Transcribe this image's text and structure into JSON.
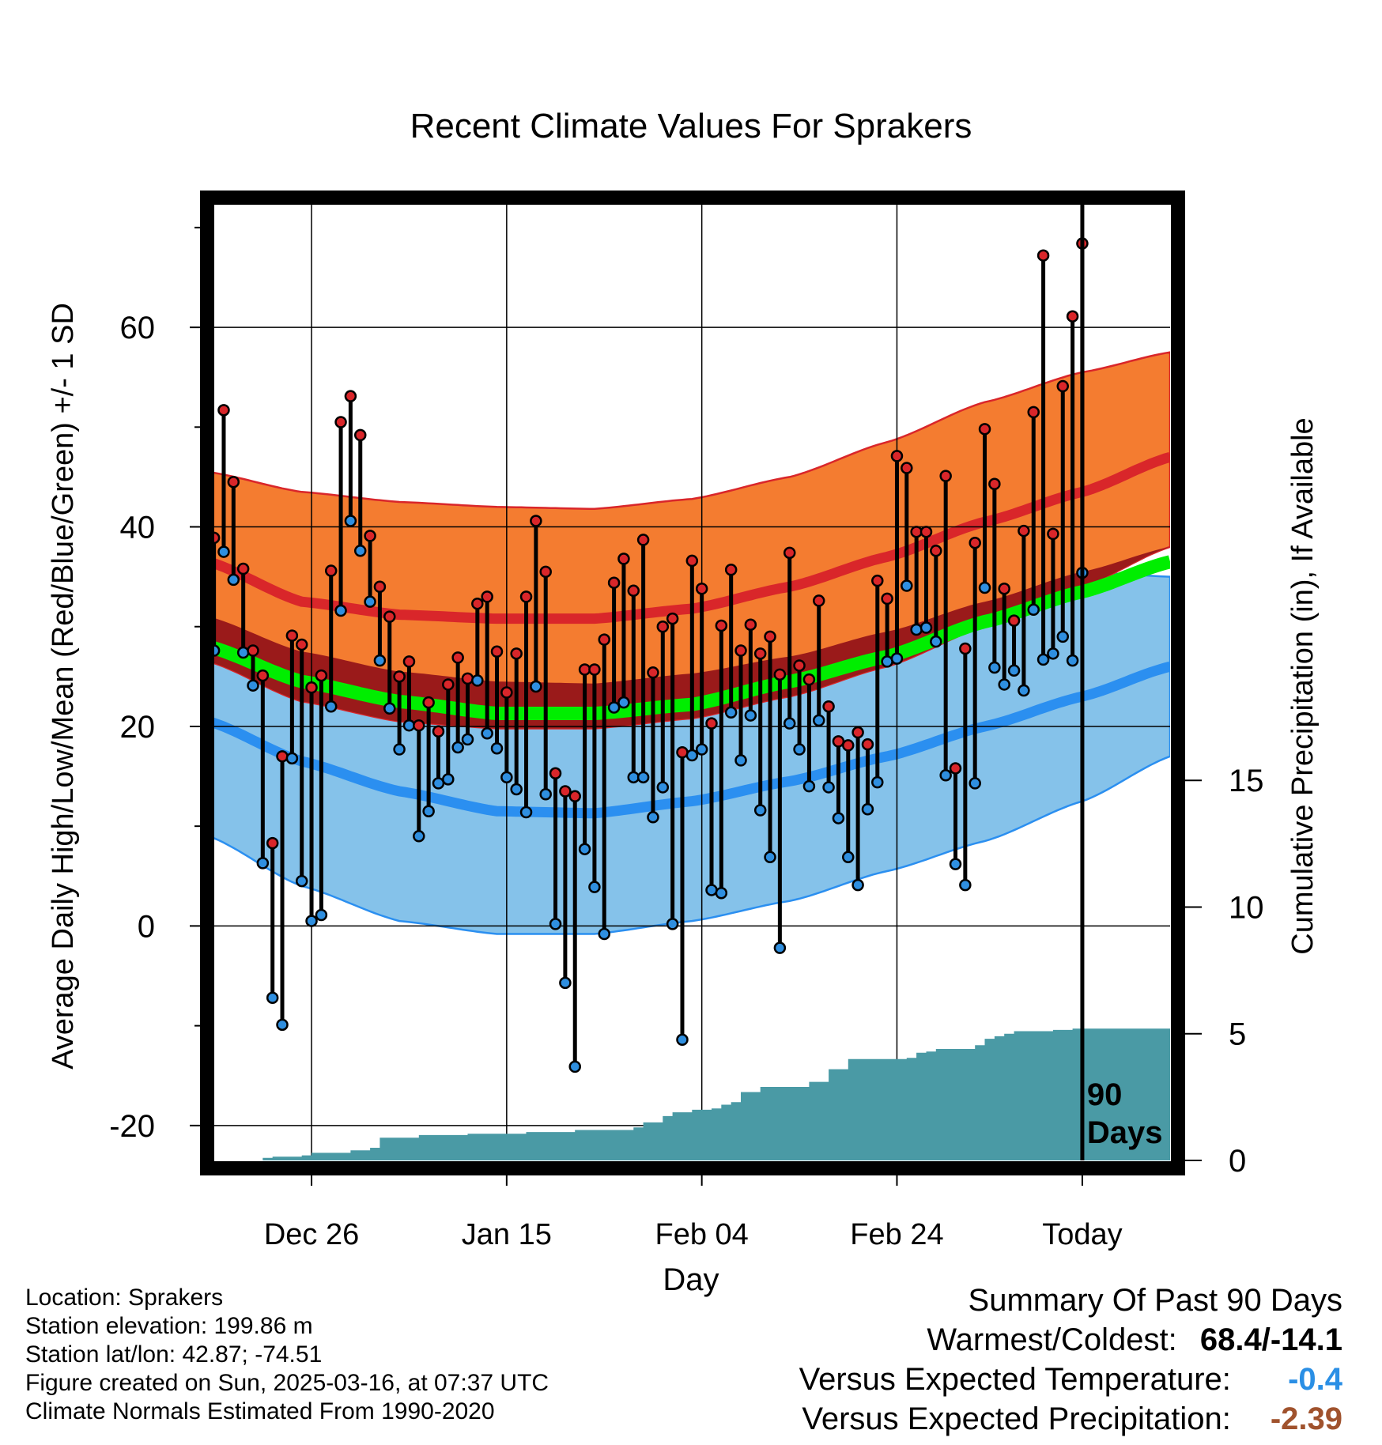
{
  "chart_data": {
    "type": "line",
    "title": "Recent Climate Values For Sprakers",
    "xlabel": "Day",
    "ylabel": "Average Daily High/Low/Mean (Red/Blue/Green) +/- 1 SD",
    "y2label": "Cumulative Precipitation (in), If Available",
    "ylim": [
      -23.5,
      73
    ],
    "y2lim": [
      0,
      38
    ],
    "xlim": [
      -89.7,
      9
    ],
    "x_unit": "days relative to today",
    "x_ticks": [
      {
        "x": -79,
        "label": "Dec 26"
      },
      {
        "x": -59,
        "label": "Jan 15"
      },
      {
        "x": -39,
        "label": "Feb 04"
      },
      {
        "x": -19,
        "label": "Feb 24"
      },
      {
        "x": 0,
        "label": "Today"
      }
    ],
    "y_ticks": [
      -20,
      0,
      20,
      40,
      60
    ],
    "y_minor_ticks": [
      -10,
      10,
      30,
      50,
      70
    ],
    "y2_ticks": [
      0,
      5,
      10,
      15
    ],
    "today_marker": {
      "x": 0,
      "label_line1": "90",
      "label_line2": "Days"
    },
    "grid": true,
    "normals": {
      "x": [
        -89.5,
        -80,
        -70,
        -60,
        -50,
        -40,
        -30,
        -20,
        -10,
        0,
        9
      ],
      "high_mean": [
        36.5,
        32.5,
        31.2,
        30.8,
        30.8,
        31.8,
        34.0,
        37.0,
        40.5,
        43.5,
        47.0
      ],
      "high_upper": [
        45.5,
        43.5,
        42.5,
        42.0,
        41.8,
        42.8,
        45.0,
        48.5,
        52.5,
        55.5,
        57.5
      ],
      "high_lower": [
        26.5,
        22.5,
        20.5,
        19.8,
        19.8,
        20.8,
        23.0,
        26.0,
        30.0,
        34.0,
        38.0
      ],
      "low_mean": [
        20.5,
        16.5,
        13.5,
        11.5,
        11.3,
        12.5,
        14.5,
        17.0,
        20.0,
        23.0,
        26.0
      ],
      "low_upper": [
        31.0,
        27.5,
        25.5,
        24.5,
        24.3,
        25.3,
        27.0,
        29.5,
        32.5,
        35.5,
        35.0
      ],
      "low_lower": [
        9.0,
        4.0,
        0.5,
        -0.8,
        -0.8,
        0.5,
        2.5,
        5.5,
        8.5,
        12.5,
        17.0
      ],
      "mean": [
        28.0,
        24.5,
        22.5,
        21.3,
        21.3,
        22.2,
        24.5,
        27.0,
        30.5,
        33.5,
        36.5
      ]
    },
    "series": [
      {
        "name": "Daily High",
        "values": [
          38.9,
          51.7,
          44.5,
          35.8,
          27.6,
          25.1,
          8.3,
          17.0,
          29.1,
          28.2,
          23.9,
          25.1,
          35.6,
          50.5,
          53.1,
          49.2,
          39.1,
          34.0,
          31.0,
          25.0,
          26.5,
          20.1,
          22.4,
          19.5,
          24.2,
          26.9,
          24.8,
          32.3,
          33.0,
          27.5,
          23.4,
          27.3,
          33.0,
          40.6,
          35.5,
          15.3,
          13.5,
          13.0,
          25.7,
          25.7,
          28.7,
          34.4,
          36.8,
          33.6,
          38.7,
          25.4,
          30.0,
          30.8,
          17.4,
          36.6,
          33.8,
          20.3,
          30.1,
          35.7,
          27.6,
          30.2,
          27.3,
          29.0,
          25.2,
          37.4,
          26.1,
          24.7,
          32.6,
          22.0,
          18.5,
          18.1,
          19.4,
          18.2,
          34.6,
          32.8,
          47.1,
          45.9,
          39.5,
          39.5,
          37.6,
          45.1,
          15.8,
          27.8,
          38.4,
          49.8,
          44.3,
          33.8,
          30.6,
          39.6,
          51.5,
          67.2,
          39.3,
          54.1,
          61.1,
          68.4
        ]
      },
      {
        "name": "Daily Low",
        "values": [
          27.6,
          37.5,
          34.7,
          27.4,
          24.1,
          6.3,
          -7.2,
          -9.9,
          16.8,
          4.5,
          0.5,
          1.1,
          22.0,
          31.6,
          40.6,
          37.6,
          32.5,
          26.6,
          21.8,
          17.7,
          20.1,
          9.0,
          11.5,
          14.3,
          14.7,
          17.9,
          18.7,
          24.6,
          19.3,
          17.8,
          14.9,
          13.7,
          11.4,
          24.0,
          13.2,
          0.2,
          -5.7,
          -14.1,
          7.7,
          3.9,
          -0.8,
          21.9,
          22.4,
          14.9,
          14.9,
          10.9,
          13.9,
          0.2,
          -11.4,
          17.1,
          17.7,
          3.6,
          3.3,
          21.4,
          16.6,
          21.1,
          11.6,
          6.9,
          -2.2,
          20.3,
          17.7,
          14.0,
          20.6,
          13.9,
          10.8,
          6.9,
          4.1,
          11.7,
          14.4,
          26.5,
          26.8,
          34.1,
          29.7,
          29.9,
          28.5,
          15.1,
          6.2,
          4.1,
          14.3,
          33.9,
          25.9,
          24.2,
          25.6,
          23.6,
          31.7,
          26.7,
          27.3,
          29.0,
          26.6,
          35.4
        ]
      },
      {
        "name": "Cumulative Precipitation",
        "x": [
          -89.5,
          -84,
          -83,
          -80,
          -79,
          -75,
          -73,
          -72,
          -68,
          -63,
          -57,
          -52,
          -46,
          -45,
          -43,
          -42,
          -40,
          -38,
          -37,
          -36,
          -35,
          -33,
          -32,
          -31,
          -28,
          -27,
          -26,
          -24,
          -23,
          -19,
          -18,
          -17,
          -16,
          -15,
          -12,
          -11,
          -10,
          -9,
          -8,
          -7,
          -5,
          -4,
          -3,
          -1,
          0,
          9
        ],
        "values": [
          0,
          0.1,
          0.15,
          0.2,
          0.3,
          0.4,
          0.5,
          0.9,
          1.0,
          1.05,
          1.12,
          1.2,
          1.3,
          1.5,
          1.75,
          1.9,
          2.0,
          2.05,
          2.2,
          2.3,
          2.7,
          2.9,
          2.9,
          2.9,
          3.1,
          3.1,
          3.6,
          4.0,
          4.0,
          4.0,
          4.05,
          4.25,
          4.3,
          4.4,
          4.4,
          4.55,
          4.8,
          4.9,
          5.0,
          5.1,
          5.1,
          5.1,
          5.15,
          5.2,
          5.2,
          5.2
        ]
      }
    ]
  },
  "info": {
    "location": "Location: Sprakers",
    "elevation": "Station elevation: 199.86 m",
    "latlon": "Station lat/lon: 42.87; -74.51",
    "created": "Figure created on Sun, 2025-03-16, at 07:37 UTC",
    "normals_period": "Climate Normals Estimated From 1990-2020"
  },
  "summary": {
    "heading": "Summary Of Past 90 Days",
    "warm_cold_label": "Warmest/Coldest:",
    "warm_cold_value": "68.4/-14.1",
    "temp_label": "Versus Expected Temperature:",
    "temp_value": "-0.4",
    "temp_color": "#2a8fe5",
    "precip_label": "Versus Expected Precipitation:",
    "precip_value": "-2.39",
    "precip_color": "#a0522d"
  },
  "colors": {
    "high_band": "#f47c30",
    "high_line": "#d9262a",
    "low_band": "#85c2ea",
    "low_line": "#2b8ff0",
    "mean_line": "#00ee00",
    "overlap_band": "#9a1a1a",
    "precip": "#4a9aa5",
    "high_dot": "#d9262a",
    "low_dot": "#2f8fe0"
  }
}
